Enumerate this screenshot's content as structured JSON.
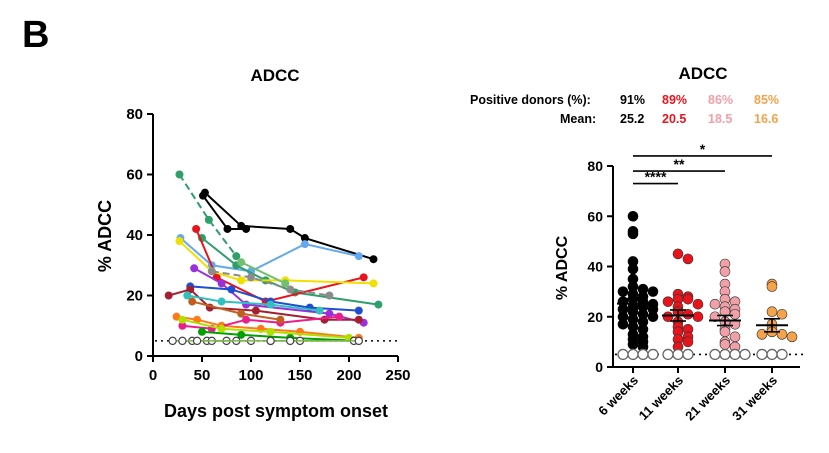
{
  "panel_label": "B",
  "colors": {
    "black": "#000000",
    "red": "#e8141c",
    "pink": "#f0a0a6",
    "orange": "#f5a24a"
  },
  "stats": {
    "row1_label": "Positive donors (%):",
    "row2_label": "Mean:",
    "positive": [
      "91%",
      "89%",
      "86%",
      "85%"
    ],
    "mean": [
      "25.2",
      "20.5",
      "18.5",
      "16.6"
    ]
  },
  "chart_data": [
    {
      "type": "line",
      "title": "ADCC",
      "xlabel": "Days post symptom onset",
      "ylabel": "% ADCC",
      "xlim": [
        0,
        250
      ],
      "ylim": [
        0,
        80
      ],
      "xticks": [
        "0",
        "50",
        "100",
        "150",
        "200",
        "250"
      ],
      "yticks": [
        "0",
        "20",
        "40",
        "60",
        "80"
      ],
      "threshold": 5,
      "series": [
        {
          "color": "#2e9e6b",
          "dashed": true,
          "x": [
            27,
            57,
            85
          ],
          "y": [
            60,
            45,
            33
          ]
        },
        {
          "color": "#000000",
          "x": [
            53,
            90,
            140,
            155,
            225
          ],
          "y": [
            54,
            43,
            42,
            39,
            32
          ]
        },
        {
          "color": "#000000",
          "x": [
            51,
            76,
            95
          ],
          "y": [
            53,
            42,
            42
          ]
        },
        {
          "color": "#64a8f0",
          "x": [
            28,
            60,
            100,
            155,
            210
          ],
          "y": [
            39,
            30,
            28,
            37,
            33
          ]
        },
        {
          "color": "#2e9e6b",
          "x": [
            50,
            85,
            115,
            145,
            230
          ],
          "y": [
            39,
            30,
            25,
            21,
            17
          ]
        },
        {
          "color": "#e8141c",
          "x": [
            44,
            65,
            115,
            215
          ],
          "y": [
            42,
            26,
            18,
            26
          ]
        },
        {
          "color": "#f0e000",
          "x": [
            27,
            60,
            90,
            135,
            225
          ],
          "y": [
            38,
            28,
            25,
            25,
            24
          ]
        },
        {
          "color": "#9b30d9",
          "x": [
            42,
            70,
            95,
            180,
            215
          ],
          "y": [
            29,
            24,
            17,
            14,
            11
          ]
        },
        {
          "color": "#1f4fd1",
          "x": [
            38,
            80,
            120,
            160,
            210
          ],
          "y": [
            23,
            22,
            18,
            16,
            15
          ]
        },
        {
          "color": "#a32030",
          "x": [
            16,
            38,
            58,
            105,
            175,
            210
          ],
          "y": [
            20,
            22,
            16,
            15,
            12,
            12
          ]
        },
        {
          "color": "#ff7a1a",
          "x": [
            24,
            45,
            70,
            110,
            150,
            210
          ],
          "y": [
            13,
            12,
            10,
            9,
            8,
            6
          ]
        },
        {
          "color": "#e91e8c",
          "x": [
            30,
            60,
            95,
            130,
            190
          ],
          "y": [
            10,
            9,
            12,
            11,
            13
          ]
        },
        {
          "color": "#30c0c0",
          "x": [
            35,
            70,
            120,
            170
          ],
          "y": [
            20,
            18,
            17,
            15
          ]
        },
        {
          "color": "#8c8c8c",
          "dashed": true,
          "x": [
            60,
            100,
            140,
            180
          ],
          "y": [
            28,
            26,
            22,
            20
          ]
        },
        {
          "color": "#00a000",
          "x": [
            50,
            90,
            140,
            210
          ],
          "y": [
            8,
            7,
            6,
            5
          ]
        },
        {
          "color": "#b0e000",
          "x": [
            30,
            70,
            120,
            200
          ],
          "y": [
            12,
            9,
            8,
            6
          ]
        },
        {
          "color": "#c06020",
          "x": [
            40,
            90,
            130
          ],
          "y": [
            18,
            14,
            12
          ]
        },
        {
          "color": "#70c070",
          "x": [
            90,
            135
          ],
          "y": [
            31,
            24
          ]
        }
      ],
      "negative_points": [
        {
          "x": [
            20,
            40,
            55,
            75,
            100
          ]
        },
        {
          "x": [
            30,
            60,
            85
          ]
        },
        {
          "x": [
            45,
            120,
            150,
            205
          ]
        },
        {
          "x": [
            120,
            140,
            210
          ]
        }
      ]
    },
    {
      "type": "scatter",
      "title": "ADCC",
      "xlabel": "",
      "ylabel": "% ADCC",
      "ylim": [
        0,
        80
      ],
      "yticks": [
        "0",
        "20",
        "40",
        "60",
        "80"
      ],
      "categories": [
        "6 weeks",
        "11 weeks",
        "21 weeks",
        "31 weeks"
      ],
      "threshold": 5,
      "means": [
        25.2,
        20.5,
        18.5,
        16.6
      ],
      "sems": [
        2.0,
        2.2,
        2.0,
        2.6
      ],
      "significance": [
        {
          "from": 0,
          "to": 1,
          "label": "****",
          "y": 73
        },
        {
          "from": 0,
          "to": 2,
          "label": "**",
          "y": 78
        },
        {
          "from": 0,
          "to": 3,
          "label": "*",
          "y": 84
        }
      ],
      "groups": [
        {
          "name": "6 weeks",
          "color": "#000000",
          "values": [
            60,
            54,
            53,
            39,
            42,
            35,
            32,
            31,
            30,
            30,
            29,
            28,
            27,
            26,
            26,
            25,
            24,
            24,
            23,
            23,
            22,
            21,
            20,
            20,
            19,
            18,
            17,
            16,
            15,
            13,
            12,
            11,
            10,
            9,
            8,
            5,
            5,
            5,
            5
          ]
        },
        {
          "name": "11 weeks",
          "color": "#e8141c",
          "values": [
            45,
            43,
            29,
            28,
            27,
            27,
            26,
            25,
            24,
            22,
            21,
            20,
            20,
            18,
            16,
            15,
            14,
            12,
            11,
            10,
            8,
            5,
            5,
            5
          ]
        },
        {
          "name": "21 weeks",
          "color": "#f0a0a6",
          "values": [
            41,
            38,
            33,
            30,
            27,
            26,
            25,
            24,
            23,
            22,
            21,
            20,
            18,
            17,
            15,
            14,
            12,
            10,
            9,
            8,
            5,
            5,
            5,
            5
          ]
        },
        {
          "name": "31 weeks",
          "color": "#f5a24a",
          "values": [
            33,
            32,
            22,
            21,
            17,
            15,
            14,
            13,
            13,
            12,
            5,
            5,
            5
          ]
        }
      ]
    }
  ]
}
